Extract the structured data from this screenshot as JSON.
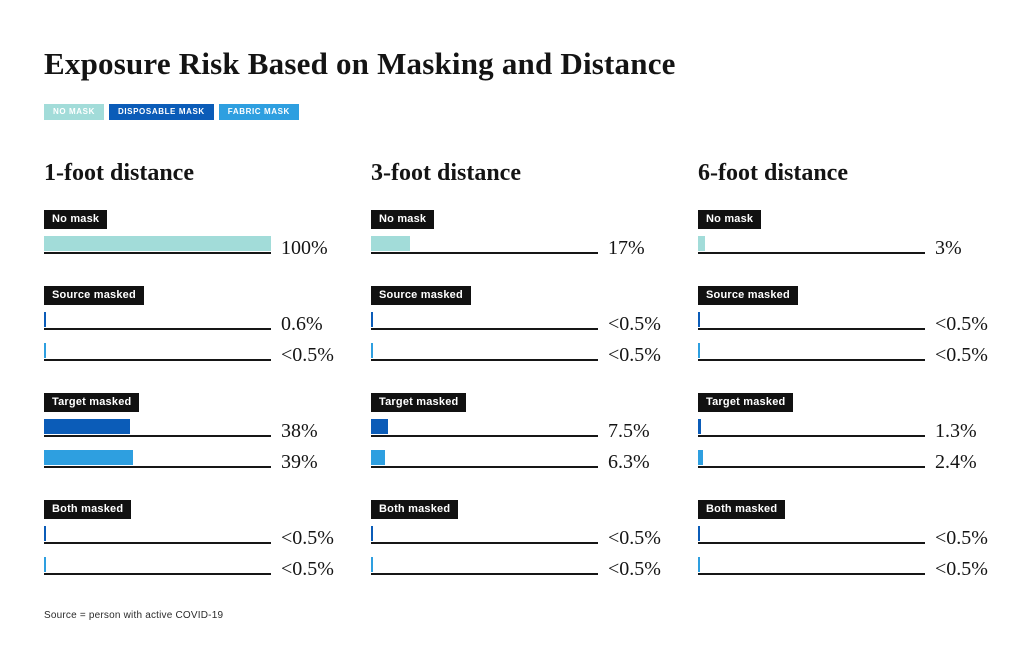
{
  "title": "Exposure Risk Based on Masking and Distance",
  "legend": [
    {
      "label": "NO MASK",
      "color": "#a2dcd9"
    },
    {
      "label": "DISPOSABLE MASK",
      "color": "#0b5cb8"
    },
    {
      "label": "FABRIC MASK",
      "color": "#2e9fe0"
    }
  ],
  "footnote": "Source = person with active COVID-19",
  "chart_data": {
    "type": "bar",
    "orientation": "horizontal",
    "unit": "exposure risk %",
    "xlim": [
      0,
      100
    ],
    "legend_position": "top",
    "columns": [
      {
        "heading": "1-foot distance",
        "groups": [
          {
            "label": "No mask",
            "bars": [
              {
                "series": "NO MASK",
                "value_label": "100%",
                "pct": 100
              }
            ]
          },
          {
            "label": "Source masked",
            "bars": [
              {
                "series": "DISPOSABLE MASK",
                "value_label": "0.6%",
                "pct": 0.6
              },
              {
                "series": "FABRIC MASK",
                "value_label": "<0.5%",
                "pct": 0.4
              }
            ]
          },
          {
            "label": "Target masked",
            "bars": [
              {
                "series": "DISPOSABLE MASK",
                "value_label": "38%",
                "pct": 38
              },
              {
                "series": "FABRIC MASK",
                "value_label": "39%",
                "pct": 39
              }
            ]
          },
          {
            "label": "Both masked",
            "bars": [
              {
                "series": "DISPOSABLE MASK",
                "value_label": "<0.5%",
                "pct": 0.4
              },
              {
                "series": "FABRIC MASK",
                "value_label": "<0.5%",
                "pct": 0.4
              }
            ]
          }
        ]
      },
      {
        "heading": "3-foot distance",
        "groups": [
          {
            "label": "No mask",
            "bars": [
              {
                "series": "NO MASK",
                "value_label": "17%",
                "pct": 17
              }
            ]
          },
          {
            "label": "Source masked",
            "bars": [
              {
                "series": "DISPOSABLE MASK",
                "value_label": "<0.5%",
                "pct": 0.4
              },
              {
                "series": "FABRIC MASK",
                "value_label": "<0.5%",
                "pct": 0.4
              }
            ]
          },
          {
            "label": "Target masked",
            "bars": [
              {
                "series": "DISPOSABLE MASK",
                "value_label": "7.5%",
                "pct": 7.5
              },
              {
                "series": "FABRIC MASK",
                "value_label": "6.3%",
                "pct": 6.3
              }
            ]
          },
          {
            "label": "Both masked",
            "bars": [
              {
                "series": "DISPOSABLE MASK",
                "value_label": "<0.5%",
                "pct": 0.4
              },
              {
                "series": "FABRIC MASK",
                "value_label": "<0.5%",
                "pct": 0.4
              }
            ]
          }
        ]
      },
      {
        "heading": "6-foot distance",
        "groups": [
          {
            "label": "No mask",
            "bars": [
              {
                "series": "NO MASK",
                "value_label": "3%",
                "pct": 3
              }
            ]
          },
          {
            "label": "Source masked",
            "bars": [
              {
                "series": "DISPOSABLE MASK",
                "value_label": "<0.5%",
                "pct": 0.4
              },
              {
                "series": "FABRIC MASK",
                "value_label": "<0.5%",
                "pct": 0.4
              }
            ]
          },
          {
            "label": "Target masked",
            "bars": [
              {
                "series": "DISPOSABLE MASK",
                "value_label": "1.3%",
                "pct": 1.3
              },
              {
                "series": "FABRIC MASK",
                "value_label": "2.4%",
                "pct": 2.4
              }
            ]
          },
          {
            "label": "Both masked",
            "bars": [
              {
                "series": "DISPOSABLE MASK",
                "value_label": "<0.5%",
                "pct": 0.4
              },
              {
                "series": "FABRIC MASK",
                "value_label": "<0.5%",
                "pct": 0.4
              }
            ]
          }
        ]
      }
    ]
  }
}
